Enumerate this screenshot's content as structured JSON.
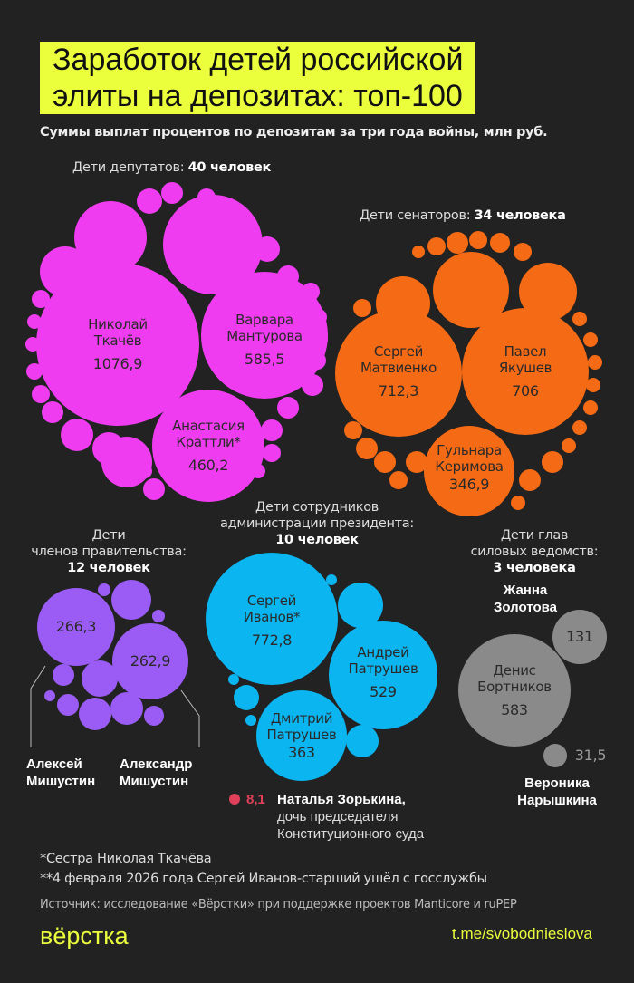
{
  "title_lines": [
    "Заработок детей российской",
    "элиты на депозитах: топ-100"
  ],
  "subtitle": "Суммы выплат процентов по депозитам за три года войны, млн руб.",
  "colors": {
    "background": "#222222",
    "accent": "#ecff3d",
    "deputies": "#f03cf0",
    "senators": "#f56a14",
    "government": "#9a5cf5",
    "administration": "#0bb5f0",
    "security": "#8a8a8a",
    "court": "#e0405a"
  },
  "chart_data": {
    "type": "bubble",
    "title": "Заработок детей российской элиты на депозитах: топ-100",
    "unit": "млн руб.",
    "groups": [
      {
        "id": "deputies",
        "label": "Дети депутатов:",
        "count": "40 человек",
        "people": [
          {
            "name": "Николай Ткачёв",
            "value": "1076,9"
          },
          {
            "name": "Варвара Мантурова",
            "value": "585,5"
          },
          {
            "name": "Анастасия Краттли*",
            "value": "460,2"
          }
        ]
      },
      {
        "id": "senators",
        "label": "Дети сенаторов:",
        "count": "34 человека",
        "people": [
          {
            "name": "Сергей Матвиенко",
            "value": "712,3"
          },
          {
            "name": "Павел Якушев",
            "value": "706"
          },
          {
            "name": "Гульнара Керимова",
            "value": "346,9"
          }
        ]
      },
      {
        "id": "government",
        "label_1": "Дети",
        "label_2": "членов правительства:",
        "count": "12 человек",
        "people": [
          {
            "name": "Алексей Мишустин",
            "value": "266,3"
          },
          {
            "name": "Александр Мишустин",
            "value": "262,9"
          }
        ]
      },
      {
        "id": "administration",
        "label_1": "Дети сотрудников",
        "label_2": "администрации президента:",
        "count": "10 человек",
        "people": [
          {
            "name": "Сергей Иванов*",
            "value": "772,8"
          },
          {
            "name": "Андрей Патрушев",
            "value": "529"
          },
          {
            "name": "Дмитрий Патрушев",
            "value": "363"
          }
        ]
      },
      {
        "id": "security",
        "label_1": "Дети глав",
        "label_2": "силовых ведомств:",
        "count": "3 человека",
        "people": [
          {
            "name": "Денис Бортников",
            "value": "583"
          },
          {
            "name": "Жанна Золотова",
            "value": "131"
          },
          {
            "name": "Вероника Нарышкина",
            "value": "31,5"
          }
        ]
      },
      {
        "id": "court",
        "people": [
          {
            "name": "Наталья Зорькина,",
            "note_1": "дочь председателя",
            "note_2": "Конституционного суда",
            "value": "8,1"
          }
        ]
      }
    ]
  },
  "footnotes": [
    "*Сестра Николая Ткачёва",
    "**4 февраля 2026 года Сергей Иванов-старший ушёл с госслужбы"
  ],
  "source": "Источник: исследование «Вёрстки» при поддержке проектов Manticore и ruPEP",
  "logo": "вёрстка",
  "link": "t.me/svobodnieslova"
}
